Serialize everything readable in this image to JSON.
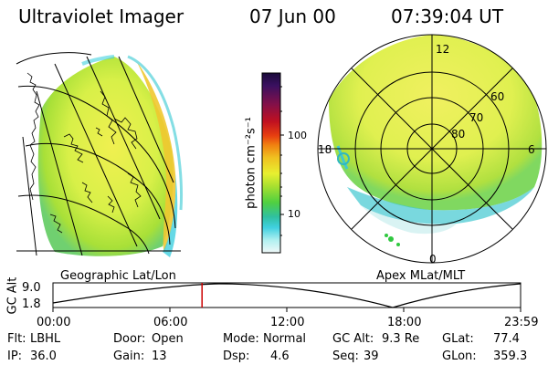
{
  "header": {
    "instrument": "Ultraviolet Imager",
    "date": "07 Jun 00",
    "time": "07:39:04 UT"
  },
  "left_panel": {
    "caption": "Geographic Lat/Lon"
  },
  "right_panel": {
    "caption": "Apex MLat/MLT",
    "mlt_labels": [
      "12",
      "18",
      "6",
      "0"
    ],
    "lat_labels": [
      "60",
      "70",
      "80"
    ]
  },
  "colorbar": {
    "unit_label": "photon cm⁻²s⁻¹",
    "ticks": [
      "100",
      "10"
    ],
    "scale": "log",
    "colors_top_to_bottom": [
      "#1a0a3a",
      "#3a1060",
      "#80104a",
      "#c01020",
      "#e84010",
      "#f08010",
      "#f0c020",
      "#e8f030",
      "#a8e030",
      "#50d040",
      "#30c0a0",
      "#40d0e0",
      "#b0f0f0",
      "#f0f8f8"
    ]
  },
  "altitude_strip": {
    "axis_label": "GC Alt",
    "y_ticks": [
      "9.0",
      "1.8"
    ],
    "x_ticks": [
      "00:00",
      "06:00",
      "12:00",
      "18:00",
      "23:59"
    ],
    "current_time_hours": 7.65,
    "marker_color": "#cc0000"
  },
  "status": {
    "row1": [
      {
        "key": "Flt:",
        "value": "LBHL"
      },
      {
        "key": "Door:",
        "value": "Open"
      },
      {
        "key": "Mode:",
        "value": "Normal"
      },
      {
        "key": "GC Alt:",
        "value": "9.3 Re"
      },
      {
        "key": "GLat:",
        "value": "77.4"
      }
    ],
    "row2": [
      {
        "key": "IP:",
        "value": "36.0"
      },
      {
        "key": "Gain:",
        "value": "13"
      },
      {
        "key": "Dsp:",
        "value": "4.6"
      },
      {
        "key": "Seq:",
        "value": "39"
      },
      {
        "key": "GLon:",
        "value": "359.3"
      }
    ]
  }
}
